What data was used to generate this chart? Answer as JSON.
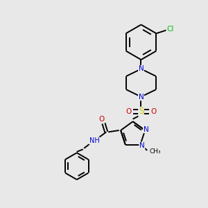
{
  "background_color": "#e8e8e8",
  "bond_color": "#000000",
  "atom_colors": {
    "N": "#0000cc",
    "O": "#cc0000",
    "S": "#cccc00",
    "Cl": "#00bb00",
    "C": "#000000"
  },
  "figsize": [
    3.0,
    3.0
  ],
  "dpi": 100,
  "xlim": [
    0,
    10
  ],
  "ylim": [
    0,
    10
  ]
}
